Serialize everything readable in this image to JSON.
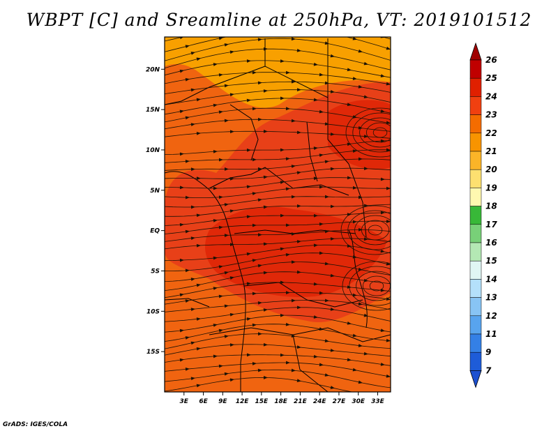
{
  "title": "WBPT [C] and Sreamline at 250hPa, VT: 2019101512",
  "footer": "GrADS: IGES/COLA",
  "map": {
    "variable": "Wet-bulb potential temperature",
    "units": "C",
    "level": "250hPa",
    "valid_time": "2019101512",
    "lat_range": [
      -20,
      24
    ],
    "lon_range": [
      0,
      35
    ],
    "lat_ticks": [
      {
        "value": 20,
        "label": "20N"
      },
      {
        "value": 15,
        "label": "15N"
      },
      {
        "value": 10,
        "label": "10N"
      },
      {
        "value": 5,
        "label": "5N"
      },
      {
        "value": 0,
        "label": "EQ"
      },
      {
        "value": -5,
        "label": "5S"
      },
      {
        "value": -10,
        "label": "10S"
      },
      {
        "value": -15,
        "label": "15S"
      }
    ],
    "lon_ticks": [
      {
        "value": 3,
        "label": "3E"
      },
      {
        "value": 6,
        "label": "6E"
      },
      {
        "value": 9,
        "label": "9E"
      },
      {
        "value": 12,
        "label": "12E"
      },
      {
        "value": 15,
        "label": "15E"
      },
      {
        "value": 18,
        "label": "18E"
      },
      {
        "value": 21,
        "label": "21E"
      },
      {
        "value": 24,
        "label": "24E"
      },
      {
        "value": 27,
        "label": "27E"
      },
      {
        "value": 30,
        "label": "30E"
      },
      {
        "value": 33,
        "label": "33E"
      }
    ]
  },
  "colorbar": {
    "levels": [
      {
        "label": "26",
        "color": "#a00000"
      },
      {
        "label": "25",
        "color": "#c00000"
      },
      {
        "label": "24",
        "color": "#e02000"
      },
      {
        "label": "23",
        "color": "#f04010"
      },
      {
        "label": "22",
        "color": "#f46c00"
      },
      {
        "label": "21",
        "color": "#f89400"
      },
      {
        "label": "20",
        "color": "#fbb428"
      },
      {
        "label": "19",
        "color": "#fde070"
      },
      {
        "label": "18",
        "color": "#fff8b0"
      },
      {
        "label": "17",
        "color": "#38b838"
      },
      {
        "label": "16",
        "color": "#78d078"
      },
      {
        "label": "15",
        "color": "#b4e8b4"
      },
      {
        "label": "14",
        "color": "#e0f6f4"
      },
      {
        "label": "13",
        "color": "#b4e0fa"
      },
      {
        "label": "12",
        "color": "#88c4f4"
      },
      {
        "label": "11",
        "color": "#58a4ee"
      },
      {
        "label": "9",
        "color": "#3480e6"
      },
      {
        "label": "7",
        "color": "#1e5cd8"
      }
    ],
    "low_color": "#1c50d0"
  },
  "colors": {
    "land_base": "#f06410",
    "land_warm": "#e84018",
    "land_hot": "#e02808",
    "north_light": "#f8a000",
    "streamline": "#1a1206",
    "boundary": "#000000"
  }
}
